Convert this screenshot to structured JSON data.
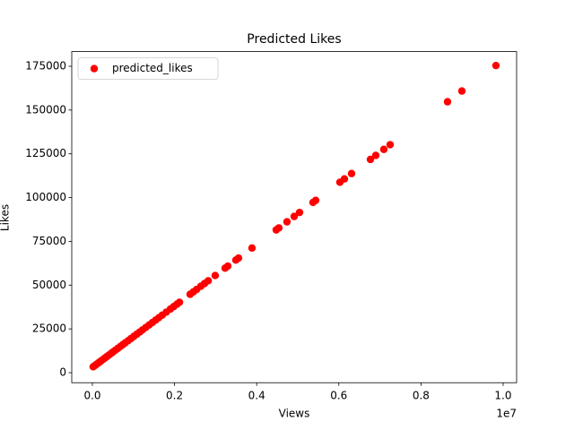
{
  "chart_data": {
    "type": "scatter",
    "title": "Predicted Likes",
    "x_label": "Views",
    "y_label": "Likes",
    "x_offset_label": "1e7",
    "x": [
      20000,
      50000,
      80000,
      120000,
      160000,
      200000,
      250000,
      300000,
      350000,
      400000,
      450000,
      500000,
      560000,
      620000,
      680000,
      740000,
      800000,
      870000,
      940000,
      1010000,
      1080000,
      1150000,
      1220000,
      1300000,
      1380000,
      1460000,
      1540000,
      1620000,
      1700000,
      1800000,
      1900000,
      1980000,
      2060000,
      2120000,
      2380000,
      2460000,
      2540000,
      2640000,
      2730000,
      2820000,
      2990000,
      3231000,
      3297000,
      3493000,
      3559000,
      3886000,
      4476000,
      4541000,
      4738000,
      4913000,
      5044000,
      5371000,
      5437000,
      6026000,
      6135000,
      6310000,
      6769000,
      6900000,
      7096000,
      7249000,
      8646000,
      8996000,
      9825000
    ],
    "series": [
      {
        "name": "predicted_likes",
        "color": "#ff0000",
        "values": [
          3351,
          3878,
          4404,
          5106,
          5808,
          6510,
          7388,
          8265,
          9143,
          10020,
          10898,
          11775,
          12828,
          13881,
          14934,
          15987,
          17040,
          18269,
          19497,
          20726,
          21954,
          23183,
          24411,
          25815,
          27219,
          28623,
          30027,
          31431,
          32835,
          34590,
          36345,
          37749,
          39153,
          40206,
          44769,
          46173,
          47577,
          49332,
          50912,
          52491,
          55475,
          59704,
          60862,
          64302,
          65460,
          71199,
          81554,
          82695,
          86152,
          89223,
          91522,
          97261,
          98419,
          108756,
          110669,
          113741,
          121796,
          124095,
          127535,
          130220,
          154737,
          160880,
          175429
        ]
      }
    ],
    "xlim": [
      -502000,
      10328000
    ],
    "xticks": [
      {
        "value": 0,
        "label": "0.0"
      },
      {
        "value": 2000000,
        "label": "0.2"
      },
      {
        "value": 4000000,
        "label": "0.4"
      },
      {
        "value": 6000000,
        "label": "0.6"
      },
      {
        "value": 8000000,
        "label": "0.8"
      },
      {
        "value": 10000000,
        "label": "1.0"
      }
    ],
    "ylim": [
      -5731,
      183392
    ],
    "yticks": [
      0,
      25000,
      50000,
      75000,
      100000,
      125000,
      150000,
      175000
    ],
    "legend": "upper left"
  }
}
